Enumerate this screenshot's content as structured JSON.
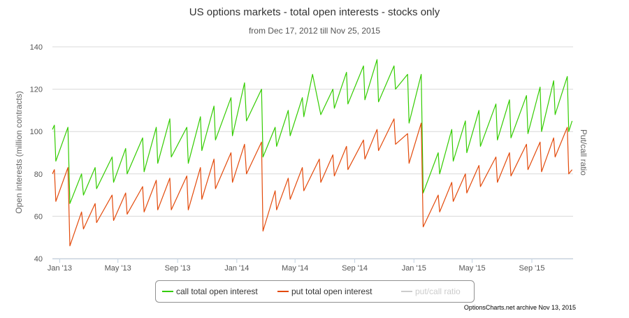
{
  "chart_data": {
    "type": "line",
    "title": "US options markets - total open interests - stocks only",
    "subtitle": "from Dec 17, 2012 till Nov 25, 2015",
    "ylabel": "Open interests (million contracts)",
    "y2label": "Put/call ratio",
    "ylim": [
      40,
      140
    ],
    "yticks": [
      40,
      60,
      80,
      100,
      120,
      140
    ],
    "xlim": [
      "2012-12-17",
      "2015-11-25"
    ],
    "xticks": [
      {
        "date": "2013-01-01",
        "label": "Jan '13"
      },
      {
        "date": "2013-05-01",
        "label": "May '13"
      },
      {
        "date": "2013-09-01",
        "label": "Sep '13"
      },
      {
        "date": "2014-01-01",
        "label": "Jan '14"
      },
      {
        "date": "2014-05-01",
        "label": "May '14"
      },
      {
        "date": "2014-09-01",
        "label": "Sep '14"
      },
      {
        "date": "2015-01-01",
        "label": "Jan '15"
      },
      {
        "date": "2015-05-01",
        "label": "May '15"
      },
      {
        "date": "2015-09-01",
        "label": "Sep '15"
      }
    ],
    "grid": "horizontal",
    "legend_position": "bottom",
    "credit": "OptionsCharts.net archive Nov 13, 2015",
    "series": [
      {
        "name": "call total open interest",
        "color": "#33cc00",
        "visible": true,
        "points": [
          [
            "2012-12-17",
            101
          ],
          [
            "2012-12-21",
            103
          ],
          [
            "2012-12-24",
            86
          ],
          [
            "2013-01-18",
            102
          ],
          [
            "2013-01-22",
            66
          ],
          [
            "2013-02-15",
            80
          ],
          [
            "2013-02-19",
            70
          ],
          [
            "2013-03-15",
            83
          ],
          [
            "2013-03-18",
            73
          ],
          [
            "2013-04-19",
            88
          ],
          [
            "2013-04-22",
            76
          ],
          [
            "2013-05-17",
            92
          ],
          [
            "2013-05-20",
            80
          ],
          [
            "2013-06-21",
            97
          ],
          [
            "2013-06-24",
            81
          ],
          [
            "2013-07-19",
            102
          ],
          [
            "2013-07-22",
            85
          ],
          [
            "2013-08-16",
            106
          ],
          [
            "2013-08-19",
            88
          ],
          [
            "2013-09-20",
            102
          ],
          [
            "2013-09-23",
            85
          ],
          [
            "2013-10-18",
            107
          ],
          [
            "2013-10-21",
            91
          ],
          [
            "2013-11-15",
            112
          ],
          [
            "2013-11-18",
            96
          ],
          [
            "2013-12-20",
            116
          ],
          [
            "2013-12-23",
            98
          ],
          [
            "2014-01-17",
            123
          ],
          [
            "2014-01-21",
            105
          ],
          [
            "2014-02-21",
            120
          ],
          [
            "2014-02-24",
            88
          ],
          [
            "2014-03-21",
            102
          ],
          [
            "2014-03-24",
            93
          ],
          [
            "2014-04-17",
            110
          ],
          [
            "2014-04-21",
            98
          ],
          [
            "2014-05-16",
            116
          ],
          [
            "2014-05-19",
            107
          ],
          [
            "2014-06-06",
            127
          ],
          [
            "2014-06-23",
            108
          ],
          [
            "2014-07-18",
            120
          ],
          [
            "2014-07-21",
            111
          ],
          [
            "2014-08-15",
            128
          ],
          [
            "2014-08-18",
            113
          ],
          [
            "2014-09-19",
            131
          ],
          [
            "2014-09-22",
            115
          ],
          [
            "2014-10-17",
            134
          ],
          [
            "2014-10-20",
            114
          ],
          [
            "2014-11-21",
            131
          ],
          [
            "2014-11-24",
            120
          ],
          [
            "2014-12-19",
            127
          ],
          [
            "2014-12-22",
            104
          ],
          [
            "2015-01-16",
            127
          ],
          [
            "2015-01-20",
            71
          ],
          [
            "2015-02-20",
            90
          ],
          [
            "2015-02-23",
            80
          ],
          [
            "2015-03-20",
            101
          ],
          [
            "2015-03-23",
            86
          ],
          [
            "2015-04-17",
            105
          ],
          [
            "2015-04-20",
            90
          ],
          [
            "2015-05-15",
            110
          ],
          [
            "2015-05-18",
            93
          ],
          [
            "2015-06-19",
            113
          ],
          [
            "2015-06-22",
            96
          ],
          [
            "2015-07-17",
            115
          ],
          [
            "2015-07-20",
            97
          ],
          [
            "2015-08-21",
            117
          ],
          [
            "2015-08-24",
            99
          ],
          [
            "2015-09-18",
            121
          ],
          [
            "2015-09-21",
            100
          ],
          [
            "2015-10-16",
            124
          ],
          [
            "2015-10-19",
            108
          ],
          [
            "2015-11-13",
            126
          ],
          [
            "2015-11-16",
            100
          ],
          [
            "2015-11-23",
            105
          ]
        ]
      },
      {
        "name": "put total open interest",
        "color": "#e34a0b",
        "visible": true,
        "points": [
          [
            "2012-12-17",
            80
          ],
          [
            "2012-12-21",
            82
          ],
          [
            "2012-12-24",
            67
          ],
          [
            "2013-01-18",
            83
          ],
          [
            "2013-01-22",
            46
          ],
          [
            "2013-02-15",
            62
          ],
          [
            "2013-02-19",
            54
          ],
          [
            "2013-03-15",
            66
          ],
          [
            "2013-03-18",
            57
          ],
          [
            "2013-04-19",
            70
          ],
          [
            "2013-04-22",
            58
          ],
          [
            "2013-05-17",
            71
          ],
          [
            "2013-05-20",
            61
          ],
          [
            "2013-06-21",
            74
          ],
          [
            "2013-06-24",
            62
          ],
          [
            "2013-07-19",
            77
          ],
          [
            "2013-07-22",
            63
          ],
          [
            "2013-08-16",
            78
          ],
          [
            "2013-08-19",
            63
          ],
          [
            "2013-09-20",
            79
          ],
          [
            "2013-09-23",
            63
          ],
          [
            "2013-10-18",
            83
          ],
          [
            "2013-10-21",
            68
          ],
          [
            "2013-11-15",
            87
          ],
          [
            "2013-11-18",
            73
          ],
          [
            "2013-12-20",
            90
          ],
          [
            "2013-12-23",
            76
          ],
          [
            "2014-01-17",
            94
          ],
          [
            "2014-01-21",
            80
          ],
          [
            "2014-02-21",
            95
          ],
          [
            "2014-02-24",
            53
          ],
          [
            "2014-03-21",
            72
          ],
          [
            "2014-03-24",
            63
          ],
          [
            "2014-04-17",
            78
          ],
          [
            "2014-04-21",
            68
          ],
          [
            "2014-05-16",
            83
          ],
          [
            "2014-05-19",
            72
          ],
          [
            "2014-06-20",
            87
          ],
          [
            "2014-06-23",
            76
          ],
          [
            "2014-07-18",
            89
          ],
          [
            "2014-07-21",
            79
          ],
          [
            "2014-08-15",
            93
          ],
          [
            "2014-08-18",
            82
          ],
          [
            "2014-09-19",
            96
          ],
          [
            "2014-09-22",
            87
          ],
          [
            "2014-10-17",
            101
          ],
          [
            "2014-10-20",
            91
          ],
          [
            "2014-11-21",
            106
          ],
          [
            "2014-11-24",
            94
          ],
          [
            "2014-12-19",
            99
          ],
          [
            "2014-12-22",
            85
          ],
          [
            "2015-01-16",
            104
          ],
          [
            "2015-01-20",
            55
          ],
          [
            "2015-02-20",
            70
          ],
          [
            "2015-02-23",
            62
          ],
          [
            "2015-03-20",
            76
          ],
          [
            "2015-03-23",
            67
          ],
          [
            "2015-04-17",
            80
          ],
          [
            "2015-04-20",
            71
          ],
          [
            "2015-05-15",
            84
          ],
          [
            "2015-05-18",
            74
          ],
          [
            "2015-06-19",
            88
          ],
          [
            "2015-06-22",
            76
          ],
          [
            "2015-07-17",
            90
          ],
          [
            "2015-07-20",
            79
          ],
          [
            "2015-08-21",
            94
          ],
          [
            "2015-08-24",
            82
          ],
          [
            "2015-09-18",
            95
          ],
          [
            "2015-09-21",
            81
          ],
          [
            "2015-10-16",
            97
          ],
          [
            "2015-10-19",
            88
          ],
          [
            "2015-11-13",
            102
          ],
          [
            "2015-11-16",
            80
          ],
          [
            "2015-11-23",
            82
          ]
        ]
      },
      {
        "name": "put/call ratio",
        "color": "#cccccc",
        "visible": false,
        "points": []
      }
    ]
  }
}
